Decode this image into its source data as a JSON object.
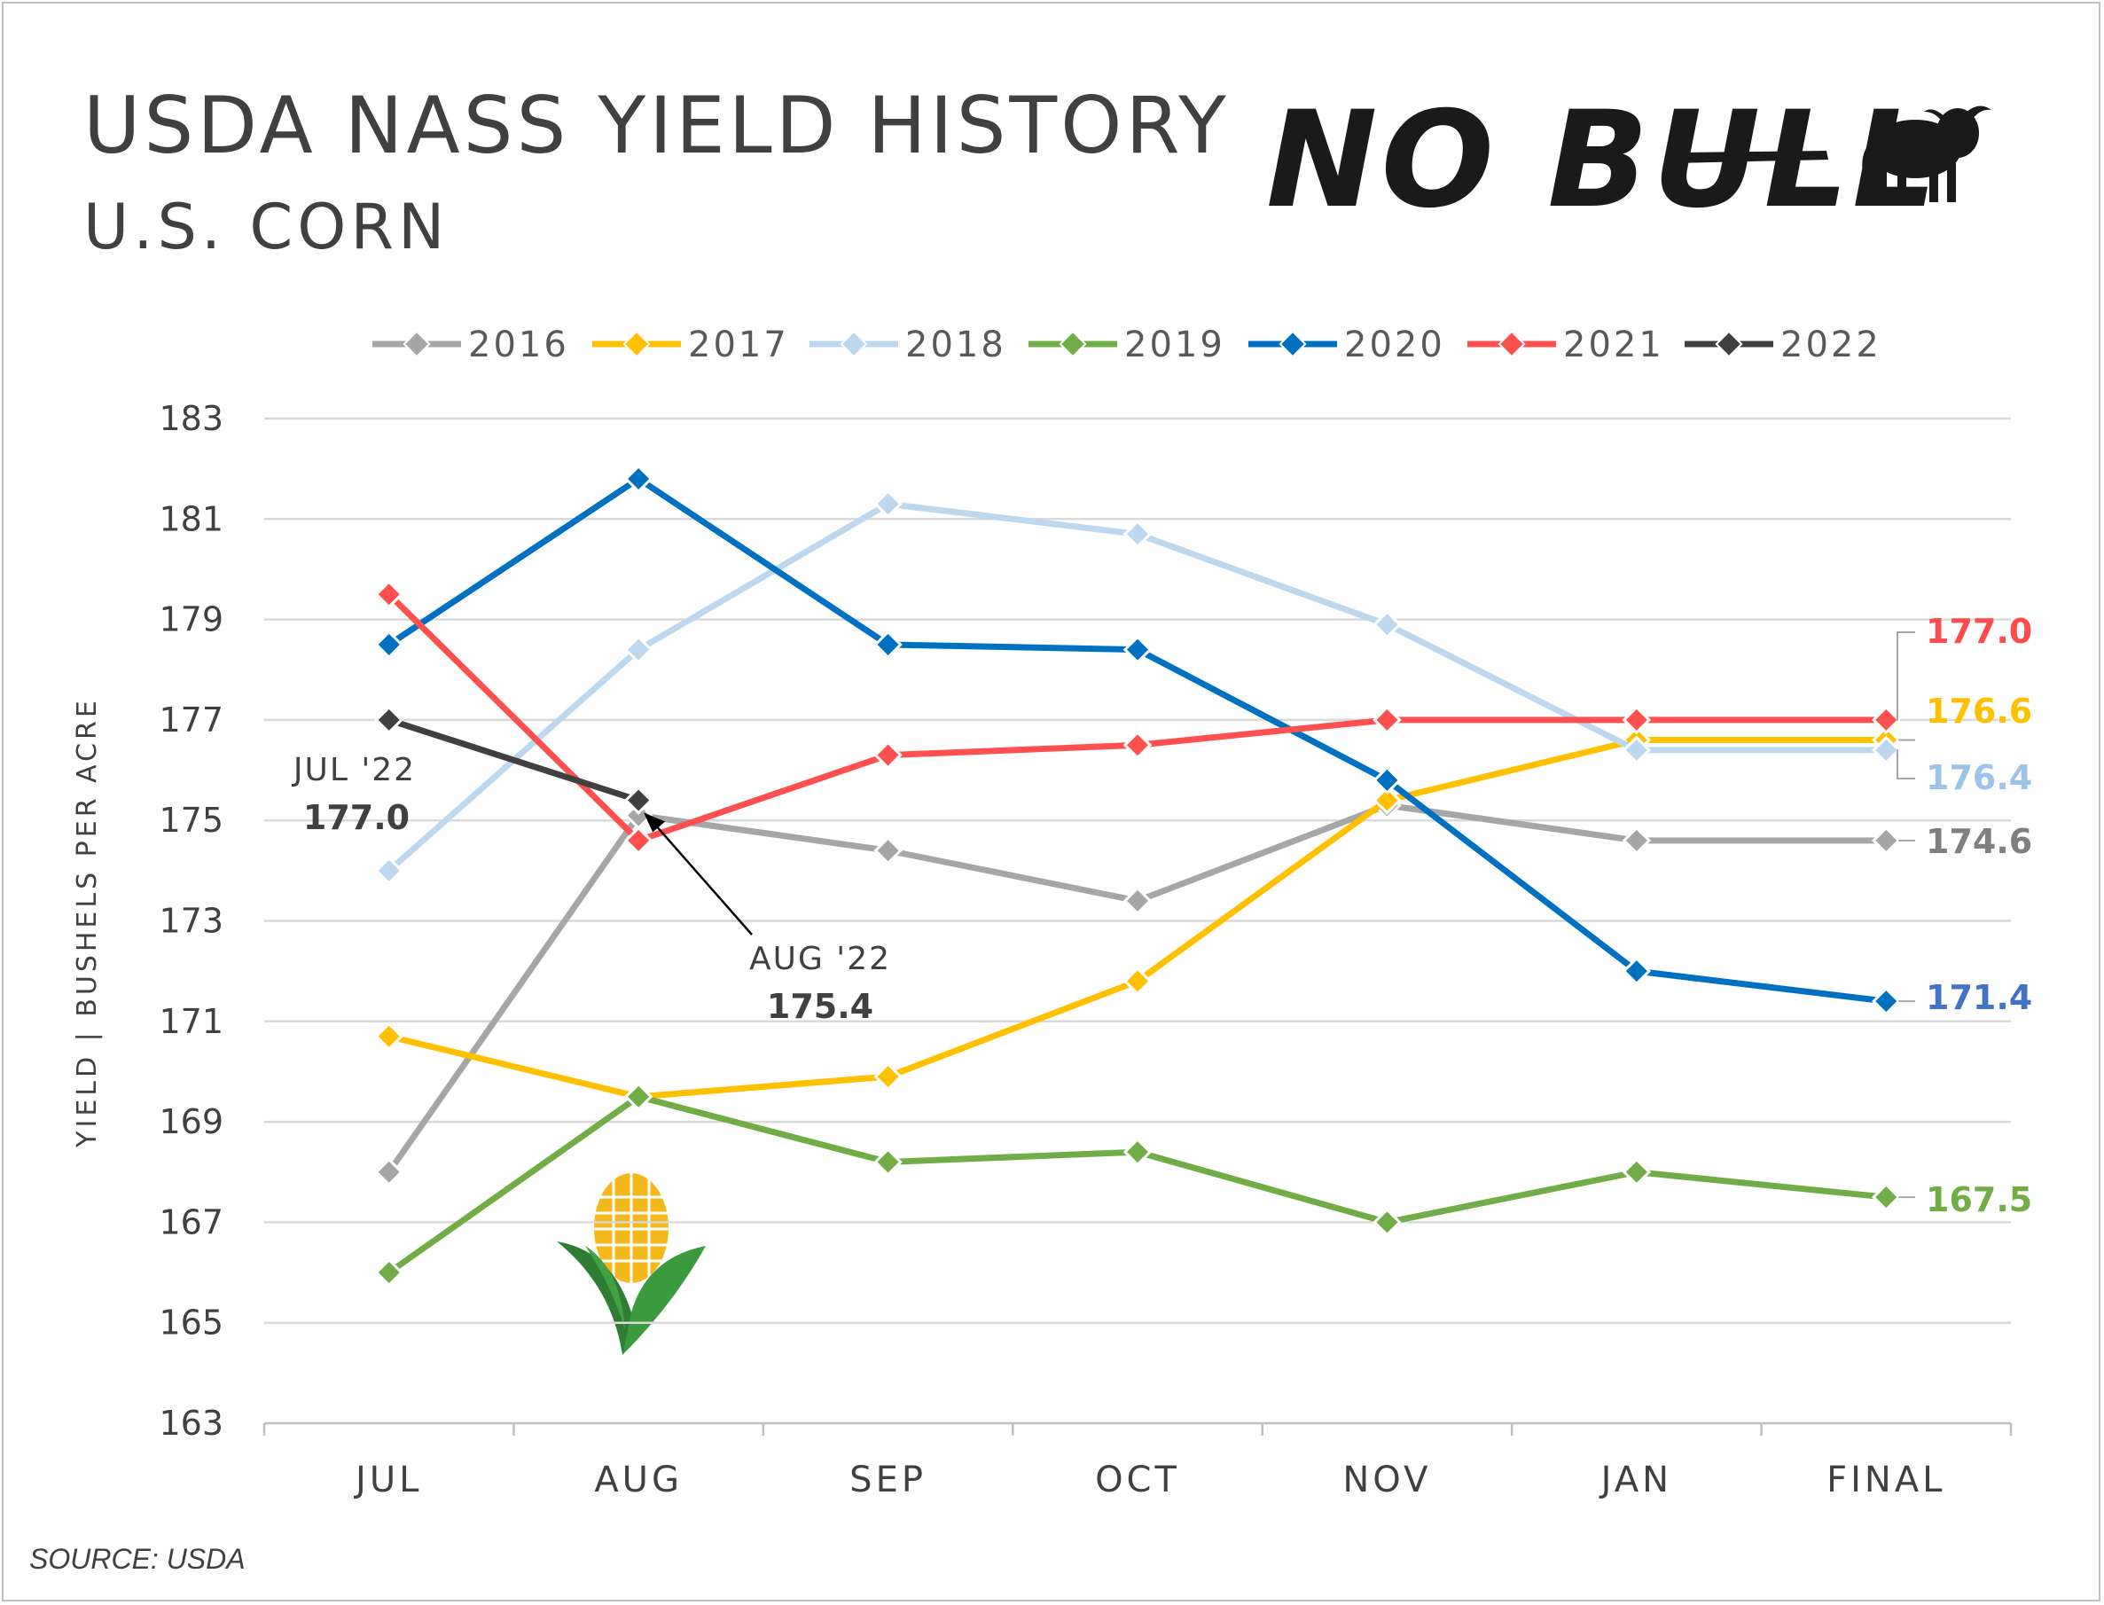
{
  "header": {
    "title": "USDA NASS YIELD HISTORY",
    "subtitle": "U.S. CORN",
    "logo_text": "NO BULL"
  },
  "source": "SOURCE: USDA",
  "chart_data": {
    "type": "line",
    "categories": [
      "JUL",
      "AUG",
      "SEP",
      "OCT",
      "NOV",
      "JAN",
      "FINAL"
    ],
    "ylabel": "YIELD | BUSHELS PER ACRE",
    "ylim": [
      163,
      183
    ],
    "yticks": [
      183,
      181,
      179,
      177,
      175,
      173,
      171,
      169,
      167,
      165,
      163
    ],
    "grid": true,
    "legend_position": "top",
    "series": [
      {
        "name": "2016",
        "color": "#a6a6a6",
        "values": [
          168.0,
          175.1,
          174.4,
          173.4,
          175.3,
          174.6,
          174.6
        ],
        "end_label": "174.6",
        "end_label_color": "#7f7f7f"
      },
      {
        "name": "2017",
        "color": "#ffc000",
        "values": [
          170.7,
          169.5,
          169.9,
          171.8,
          175.4,
          176.6,
          176.6
        ],
        "end_label": "176.6",
        "end_label_color": "#ffc000"
      },
      {
        "name": "2018",
        "color": "#bdd7ee",
        "values": [
          174.0,
          178.4,
          181.3,
          180.7,
          178.9,
          176.4,
          176.4
        ],
        "end_label": "176.4",
        "end_label_color": "#9dc3e6"
      },
      {
        "name": "2019",
        "color": "#70ad47",
        "values": [
          166.0,
          169.5,
          168.2,
          168.4,
          167.0,
          168.0,
          167.5
        ],
        "end_label": "167.5",
        "end_label_color": "#70ad47"
      },
      {
        "name": "2020",
        "color": "#0070c0",
        "values": [
          178.5,
          181.8,
          178.5,
          178.4,
          175.8,
          172.0,
          171.4
        ],
        "end_label": "171.4",
        "end_label_color": "#4472c4"
      },
      {
        "name": "2021",
        "color": "#ff5050",
        "values": [
          179.5,
          174.6,
          176.3,
          176.5,
          177.0,
          177.0,
          177.0
        ],
        "end_label": "177.0",
        "end_label_color": "#ff4b4b"
      },
      {
        "name": "2022",
        "color": "#404040",
        "values": [
          177.0,
          175.4,
          null,
          null,
          null,
          null,
          null
        ]
      }
    ],
    "annotations": [
      {
        "label": "JUL '22",
        "value": "177.0"
      },
      {
        "label": "AUG '22",
        "value": "175.4"
      }
    ]
  }
}
